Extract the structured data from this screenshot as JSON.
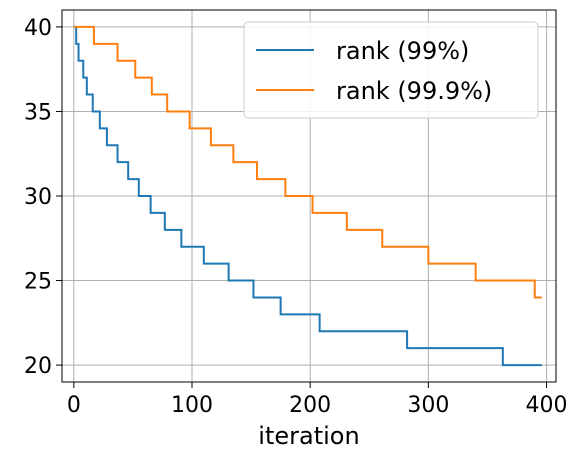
{
  "chart_data": {
    "type": "line",
    "title": "",
    "xlabel": "iteration",
    "ylabel": "",
    "xlim": [
      -10,
      408
    ],
    "ylim": [
      19,
      41
    ],
    "xticks": [
      0,
      100,
      200,
      300,
      400
    ],
    "yticks": [
      20,
      25,
      30,
      35,
      40
    ],
    "grid": true,
    "legend_position": "top-right",
    "series": [
      {
        "name": "rank (99%)",
        "color": "#1f77b4",
        "points": [
          [
            0,
            40
          ],
          [
            2,
            39
          ],
          [
            4,
            38
          ],
          [
            8,
            37
          ],
          [
            11,
            36
          ],
          [
            16,
            35
          ],
          [
            22,
            34
          ],
          [
            28,
            33
          ],
          [
            37,
            32
          ],
          [
            46,
            31
          ],
          [
            55,
            30
          ],
          [
            65,
            29
          ],
          [
            77,
            28
          ],
          [
            91,
            27
          ],
          [
            110,
            26
          ],
          [
            131,
            25
          ],
          [
            152,
            24
          ],
          [
            175,
            23
          ],
          [
            208,
            22
          ],
          [
            282,
            21
          ],
          [
            363,
            20
          ],
          [
            396,
            20
          ]
        ]
      },
      {
        "name": "rank (99.9%)",
        "color": "#ff7f0e",
        "points": [
          [
            0,
            40
          ],
          [
            17,
            39
          ],
          [
            37,
            38
          ],
          [
            52,
            37
          ],
          [
            66,
            36
          ],
          [
            79,
            35
          ],
          [
            98,
            34
          ],
          [
            116,
            33
          ],
          [
            135,
            32
          ],
          [
            155,
            31
          ],
          [
            179,
            30
          ],
          [
            202,
            29
          ],
          [
            231,
            28
          ],
          [
            261,
            27
          ],
          [
            300,
            26
          ],
          [
            340,
            25
          ],
          [
            390,
            24
          ],
          [
            396,
            24
          ]
        ]
      }
    ]
  }
}
